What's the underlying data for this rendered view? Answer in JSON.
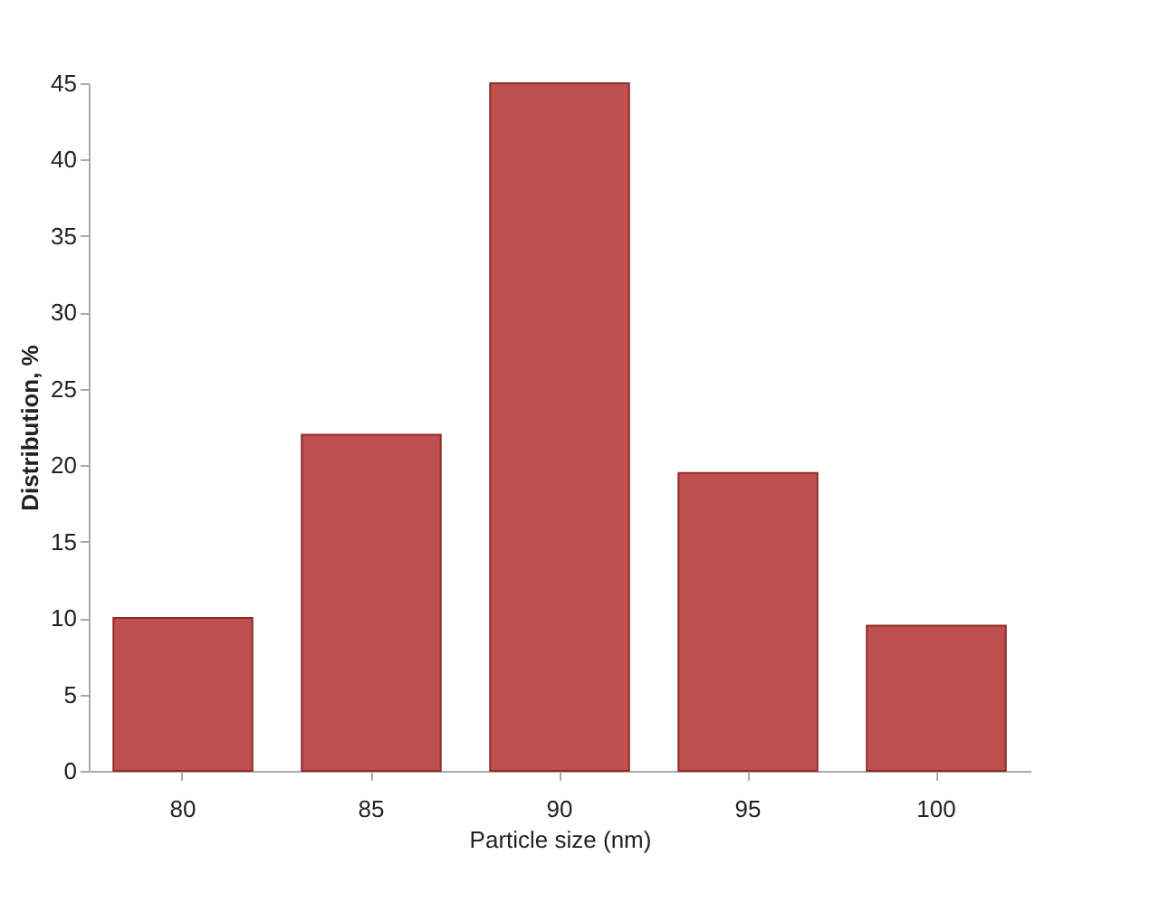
{
  "chart_data": {
    "type": "bar",
    "xlabel": "Particle size (nm)",
    "ylabel": "Distribution, %",
    "categories": [
      "80",
      "85",
      "90",
      "95",
      "100"
    ],
    "values": [
      10,
      22,
      45,
      19.5,
      9.5
    ],
    "color": "#c0504d",
    "ylim": [
      0,
      45
    ],
    "yticks": [
      0,
      5,
      10,
      15,
      20,
      25,
      30,
      35,
      40,
      45
    ],
    "grid": false
  }
}
